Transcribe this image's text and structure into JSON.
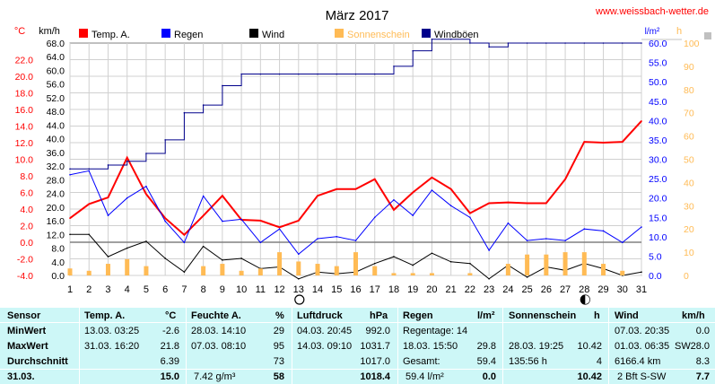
{
  "header": {
    "title": "März 2017",
    "site": "www.weissbach-wetter.de"
  },
  "colors": {
    "temp": "#ff0000",
    "rain": "#0000ff",
    "wind": "#000000",
    "sun": "#ffbb55",
    "gust": "#00008b",
    "zero": "#808080"
  },
  "legend": [
    {
      "label": "Temp. A.",
      "color": "#ff0000",
      "x": 88
    },
    {
      "label": "Regen",
      "color": "#0000ff",
      "x": 180
    },
    {
      "label": "Wind",
      "color": "#000000",
      "x": 278
    },
    {
      "label": "Sonnenschein",
      "color": "#ffbb55",
      "x": 373
    },
    {
      "label": "Windböen",
      "color": "#00008b",
      "x": 470
    }
  ],
  "units": {
    "celsius": "°C",
    "kmh": "km/h",
    "rain": "l/m²",
    "hours": "h",
    "percent": "%"
  },
  "chart_data": {
    "type": "line",
    "x": [
      1,
      2,
      3,
      4,
      5,
      6,
      7,
      8,
      9,
      10,
      11,
      12,
      13,
      14,
      15,
      16,
      17,
      18,
      19,
      20,
      21,
      22,
      23,
      24,
      25,
      26,
      27,
      28,
      29,
      30,
      31
    ],
    "xlim": [
      1,
      31
    ],
    "temp_ylim": [
      -4,
      24
    ],
    "temp_ticks": [
      "22.0",
      "20.0",
      "18.0",
      "16.0",
      "14.0",
      "12.0",
      "10.0",
      "8.0",
      "6.0",
      "4.0",
      "2.0",
      "0.0",
      "-2.0",
      "-4.0"
    ],
    "kmh_ticks": [
      "68.0",
      "64.0",
      "60.0",
      "56.0",
      "52.0",
      "48.0",
      "44.0",
      "40.0",
      "36.0",
      "32.0",
      "28.0",
      "24.0",
      "20.0",
      "16.0",
      "12.0",
      "8.0",
      "4.0",
      "0.0"
    ],
    "rain_ticks": [
      "60.0",
      "55.0",
      "50.0",
      "45.0",
      "40.0",
      "35.0",
      "30.0",
      "25.0",
      "20.0",
      "15.0",
      "10.0",
      "5.0",
      "0.0"
    ],
    "sun_ticks": [
      "100",
      "90",
      "80",
      "70",
      "60",
      "50",
      "40",
      "30",
      "20",
      "10",
      "0"
    ],
    "grid": true,
    "legend_position": "top",
    "annotations": [
      {
        "symbol": "new-moon",
        "day": 13
      },
      {
        "symbol": "full-moon",
        "day": 28
      }
    ],
    "series": [
      {
        "name": "Temp. A.",
        "axis": "temp",
        "values": [
          2.9,
          4.6,
          5.4,
          10.2,
          5.8,
          2.9,
          0.9,
          3.2,
          5.6,
          2.7,
          2.6,
          1.8,
          2.6,
          5.6,
          6.4,
          6.4,
          7.6,
          3.9,
          6.0,
          7.8,
          6.4,
          3.5,
          4.7,
          4.8,
          4.7,
          4.7,
          7.6,
          12.1,
          12.0,
          12.1,
          14.6
        ]
      },
      {
        "name": "Regen",
        "axis": "rain",
        "values": [
          26.0,
          27.0,
          15.5,
          20.0,
          23.0,
          14.0,
          8.5,
          20.5,
          14.0,
          14.5,
          8.5,
          12.0,
          5.5,
          9.5,
          10.0,
          9.0,
          15.0,
          19.5,
          15.5,
          22.0,
          18.0,
          15.0,
          6.5,
          13.5,
          9.0,
          9.5,
          9.0,
          12.0,
          11.5,
          8.5,
          12.5
        ]
      },
      {
        "name": "Wind",
        "axis": "kmh",
        "values": [
          12.0,
          12.0,
          5.5,
          8.0,
          10.0,
          5.0,
          1.0,
          8.5,
          4.5,
          5.0,
          2.0,
          2.5,
          -1.0,
          1.0,
          0.5,
          1.0,
          3.5,
          5.5,
          3.0,
          6.5,
          4.0,
          3.5,
          -1.0,
          3.0,
          -0.5,
          2.5,
          1.5,
          3.5,
          2.0,
          0.0,
          1.0
        ]
      },
      {
        "name": "Sonnenschein",
        "axis": "sun",
        "values": [
          3,
          2,
          5,
          7,
          4,
          0,
          0,
          4,
          5,
          2,
          3,
          10,
          6,
          5,
          4,
          10,
          4,
          1,
          1,
          1,
          0,
          1,
          0,
          5,
          9,
          9,
          10,
          10,
          5,
          2,
          0
        ]
      },
      {
        "name": "Windböen",
        "axis": "rain",
        "values": [
          27.5,
          27.5,
          28.5,
          29.5,
          31.5,
          35,
          42,
          44,
          49,
          52,
          52,
          52,
          52,
          52,
          52,
          52,
          52,
          54,
          58,
          61,
          61,
          60,
          59,
          60,
          60,
          60,
          60,
          60,
          60,
          60,
          60
        ]
      }
    ]
  },
  "stats": {
    "headers": {
      "sensor": "Sensor",
      "temp": "Temp. A.",
      "temp_unit": "°C",
      "hum": "Feuchte A.",
      "hum_unit": "%",
      "press": "Luftdruck",
      "press_unit": "hPa",
      "rain": "Regen",
      "rain_unit": "l/m²",
      "sun": "Sonnenschein",
      "sun_unit": "h",
      "wind": "Wind",
      "wind_unit": "km/h"
    },
    "labels": {
      "min": "MinWert",
      "max": "MaxWert",
      "avg": "Durchschnitt",
      "date": "31.03."
    },
    "temp": {
      "min_date": "13.03.  03:25",
      "min": "-2.6",
      "max_date": "31.03.  16:20",
      "max": "21.8",
      "avg": "6.39",
      "today": "15.0"
    },
    "hum": {
      "min_date": "28.03.  14:10",
      "min": "29",
      "max_date": "07.03.  08:10",
      "max": "95",
      "avg": "73",
      "abs": "7.42 g/m³",
      "today": "58"
    },
    "press": {
      "min_date": "04.03.  20:45",
      "min": "992.0",
      "max_date": "14.03.  09:10",
      "max": "1031.7",
      "avg": "1017.0",
      "today": "1018.4"
    },
    "rain": {
      "rain_days": "Regentage: 14",
      "max_date": "18.03.  15:50",
      "max": "29.8",
      "total_label": "Gesamt:",
      "total": "59.4",
      "today_note": "59.4 l/m²",
      "today": "0.0"
    },
    "sun": {
      "max_date": "28.03.  19:25",
      "max": "10.42",
      "total": "135:56 h",
      "days": "4",
      "today": "10.42"
    },
    "wind": {
      "min_date": "07.03.  20:35",
      "min": "0.0",
      "max_date": "01.03.  06:35",
      "max_dir": "SW",
      "max": "28.0",
      "dist": "6166.4 km",
      "avg": "8.3",
      "today_note": "2 Bft S-SW",
      "today": "7.7"
    }
  }
}
